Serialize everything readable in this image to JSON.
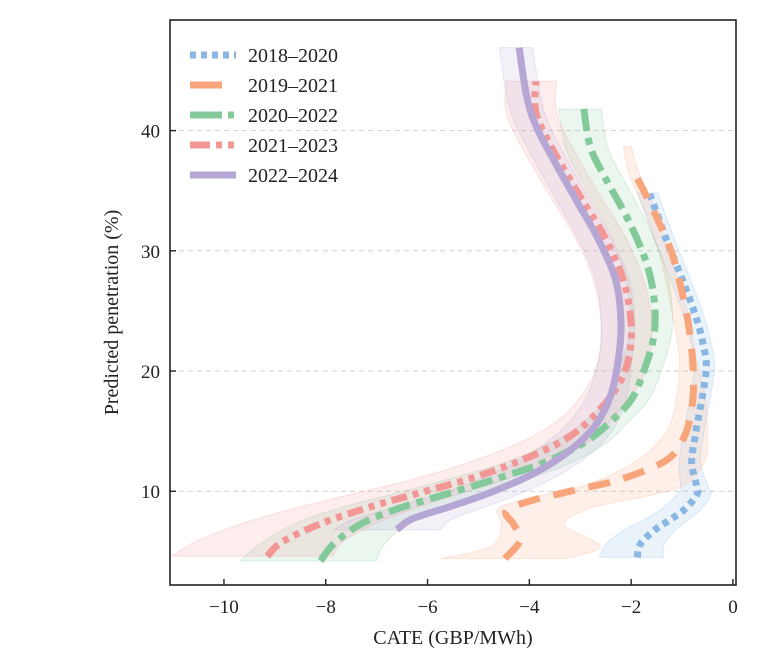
{
  "chart_data": {
    "type": "line",
    "title": "",
    "xlabel": "CATE (GBP/MWh)",
    "ylabel": "Predicted penetration (%)",
    "xlim": [
      -11.06,
      0.06
    ],
    "ylim": [
      2.2,
      49.2
    ],
    "xticks": [
      -10,
      -8,
      -6,
      -4,
      -2,
      0
    ],
    "xtick_labels": [
      "−10",
      "−8",
      "−6",
      "−4",
      "−2",
      "0"
    ],
    "yticks": [
      10,
      20,
      30,
      40
    ],
    "ytick_labels": [
      "10",
      "20",
      "30",
      "40"
    ],
    "grid": "horizontal dashed at y ticks",
    "legend_position": "top-left",
    "series": [
      {
        "name": "2018–2020",
        "color": "#89b6e3",
        "dash": "dotted",
        "points": [
          [
            -1.88,
            4.5
          ],
          [
            -1.82,
            5.6
          ],
          [
            -1.53,
            6.8
          ],
          [
            -1.28,
            7.5
          ],
          [
            -0.95,
            8.5
          ],
          [
            -0.71,
            9.7
          ],
          [
            -0.71,
            10.4
          ],
          [
            -0.81,
            12.4
          ],
          [
            -0.73,
            14.9
          ],
          [
            -0.53,
            19.9
          ],
          [
            -0.59,
            22.3
          ],
          [
            -0.75,
            24.8
          ],
          [
            -1.04,
            28.1
          ],
          [
            -1.28,
            30.6
          ],
          [
            -1.45,
            32.6
          ],
          [
            -1.64,
            34.8
          ]
        ],
        "band_halfwidth": 0.18
      },
      {
        "name": "2019–2021",
        "color": "#f8a57c",
        "dash": "dashed",
        "points": [
          [
            -4.48,
            4.4
          ],
          [
            -4.18,
            5.9
          ],
          [
            -4.3,
            7.2
          ],
          [
            -4.46,
            8.3
          ],
          [
            -4.06,
            9.1
          ],
          [
            -3.1,
            10.1
          ],
          [
            -2.2,
            11.0
          ],
          [
            -1.3,
            12.6
          ],
          [
            -0.95,
            14.6
          ],
          [
            -0.8,
            17.2
          ],
          [
            -0.78,
            20.0
          ],
          [
            -0.86,
            23.5
          ],
          [
            -1.0,
            26.6
          ],
          [
            -1.2,
            29.8
          ],
          [
            -1.5,
            32.8
          ],
          [
            -1.85,
            35.8
          ],
          [
            -2.0,
            36.8
          ]
        ],
        "band": {
          "upper_x": [
            -3.3,
            -2.6,
            -3.3,
            -2.8,
            -1.7,
            -0.95,
            -0.55,
            -0.5,
            -0.55,
            -0.72,
            -0.9,
            -1.2,
            -1.5,
            -1.85,
            -2.0
          ],
          "lower_x": [
            -5.75,
            -4.75,
            -4.55,
            -4.6,
            -3.8,
            -2.9,
            -1.9,
            -1.3,
            -1.1,
            -1.05,
            -1.2,
            -1.4,
            -1.7,
            -2.05,
            -2.15
          ],
          "y": [
            4.4,
            5.4,
            7.2,
            8.6,
            9.6,
            10.5,
            12.5,
            15.0,
            18.0,
            21.0,
            25.0,
            29.0,
            33.0,
            36.5,
            38.7
          ]
        }
      },
      {
        "name": "2020–2022",
        "color": "#84c99a",
        "dash": "dashdot-long",
        "points": [
          [
            -8.1,
            4.2
          ],
          [
            -7.85,
            5.6
          ],
          [
            -7.3,
            7.3
          ],
          [
            -6.55,
            8.6
          ],
          [
            -5.6,
            9.8
          ],
          [
            -4.6,
            11.1
          ],
          [
            -3.7,
            12.4
          ],
          [
            -2.9,
            14.1
          ],
          [
            -2.4,
            15.8
          ],
          [
            -2.0,
            17.6
          ],
          [
            -1.75,
            20.0
          ],
          [
            -1.55,
            23.0
          ],
          [
            -1.55,
            26.0
          ],
          [
            -1.7,
            29.0
          ],
          [
            -2.05,
            32.5
          ],
          [
            -2.5,
            36.0
          ],
          [
            -2.8,
            38.6
          ],
          [
            -2.93,
            41.8
          ]
        ],
        "band_halfwidth": 0.38
      },
      {
        "name": "2021–2023",
        "color": "#f29696",
        "dash": "dashdotdot",
        "points": [
          [
            -9.15,
            4.6
          ],
          [
            -8.85,
            5.8
          ],
          [
            -8.1,
            7.3
          ],
          [
            -7.2,
            8.6
          ],
          [
            -6.3,
            9.7
          ],
          [
            -5.2,
            11.0
          ],
          [
            -4.2,
            12.5
          ],
          [
            -3.3,
            14.3
          ],
          [
            -2.75,
            16.2
          ],
          [
            -2.3,
            18.5
          ],
          [
            -2.05,
            21.0
          ],
          [
            -2.0,
            24.0
          ],
          [
            -2.15,
            27.5
          ],
          [
            -2.5,
            31.0
          ],
          [
            -3.0,
            34.5
          ],
          [
            -3.55,
            38.5
          ],
          [
            -3.87,
            41.5
          ],
          [
            -3.87,
            44.1
          ]
        ],
        "band_halfwidth": 0.45
      },
      {
        "name": "2022–2024",
        "color": "#b5a6d4",
        "dash": "solid",
        "points": [
          [
            -6.6,
            6.8
          ],
          [
            -6.3,
            7.7
          ],
          [
            -5.5,
            8.8
          ],
          [
            -4.7,
            10.0
          ],
          [
            -3.9,
            11.5
          ],
          [
            -3.2,
            13.4
          ],
          [
            -2.7,
            15.5
          ],
          [
            -2.4,
            18.0
          ],
          [
            -2.25,
            21.0
          ],
          [
            -2.2,
            24.0
          ],
          [
            -2.3,
            27.5
          ],
          [
            -2.65,
            31.0
          ],
          [
            -3.05,
            34.0
          ],
          [
            -3.45,
            37.0
          ],
          [
            -3.85,
            40.2
          ],
          [
            -4.05,
            42.8
          ],
          [
            -4.2,
            46.9
          ]
        ],
        "band_halfwidth": 0.3
      }
    ]
  }
}
